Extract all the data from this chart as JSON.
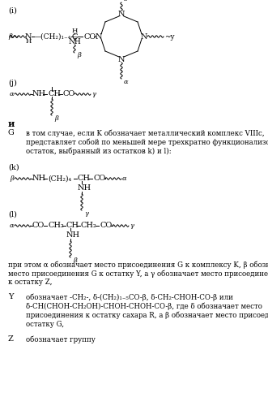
{
  "background_color": "#ffffff",
  "figsize": [
    3.31,
    5.0
  ],
  "dpi": 100,
  "sections": {
    "i": "(i)",
    "j": "(j)",
    "and": "и",
    "G": "G",
    "k": "(k)",
    "l": "(l)",
    "Y": "Y",
    "Z": "Z"
  },
  "g_text_lines": [
    "в том случае, если K обозначает металлический комплекс VIIIc,",
    "представляет собой по меньшей мере трехкратно функционализованный",
    "остаток, выбранный из остатков k) и l):"
  ],
  "bottom_text_lines": [
    "при этом α обозначает место присоединения G к комплексу K, β обозначает",
    "место присоединения G к остатку Y, а γ обозначает место присоединения G",
    "к остатку Z,"
  ],
  "Y_text_lines": [
    "обозначает -CH₂-, δ-(CH₂)₁₋₅CO-β, δ-CH₂-CHOH-CO-β или",
    "δ-CH(CHOH-CH₂OH)-CHOH-CHOH-CO-β, где δ обозначает место",
    "присоединения к остатку сахара R, а β обозначает место присоединения к",
    "остатку G,"
  ],
  "Z_text": "обозначает группу"
}
